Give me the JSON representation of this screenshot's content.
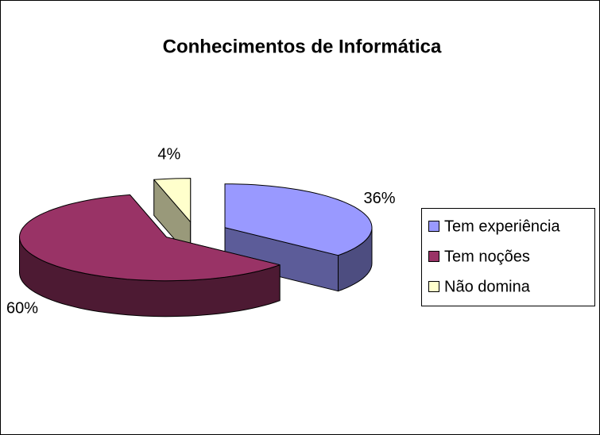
{
  "chart_data": {
    "type": "pie3d",
    "title": "Conhecimentos de Informática",
    "categories": [
      "Tem experiência",
      "Tem noções",
      "Não domina"
    ],
    "values": [
      36,
      60,
      4
    ],
    "value_labels": [
      "36%",
      "60%",
      "4%"
    ],
    "colors": [
      "#9999ff",
      "#993366",
      "#ffffcc"
    ],
    "legend": "right"
  }
}
